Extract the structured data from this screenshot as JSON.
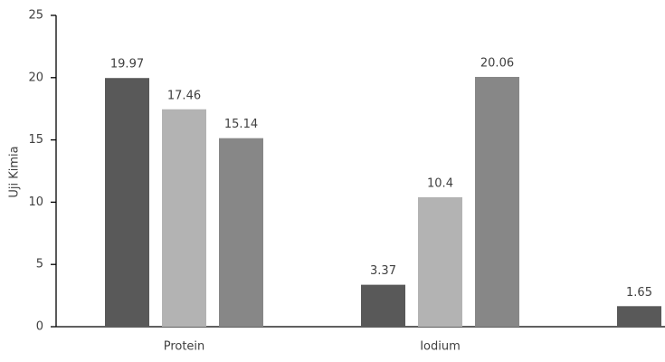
{
  "chart_data": {
    "type": "bar",
    "y_label": "Uji Kimia",
    "categories": [
      "Protein",
      "Iodium",
      null
    ],
    "series": [
      {
        "color": "#595959",
        "values": [
          19.97,
          3.37,
          1.65
        ]
      },
      {
        "color": "#b3b3b3",
        "values": [
          17.46,
          10.4,
          null
        ]
      },
      {
        "color": "#878787",
        "values": [
          15.14,
          20.06,
          null
        ]
      }
    ],
    "ylim": [
      0,
      25
    ],
    "yticks": [
      0,
      5,
      10,
      15,
      20,
      25
    ],
    "grid": false,
    "legend": false
  }
}
